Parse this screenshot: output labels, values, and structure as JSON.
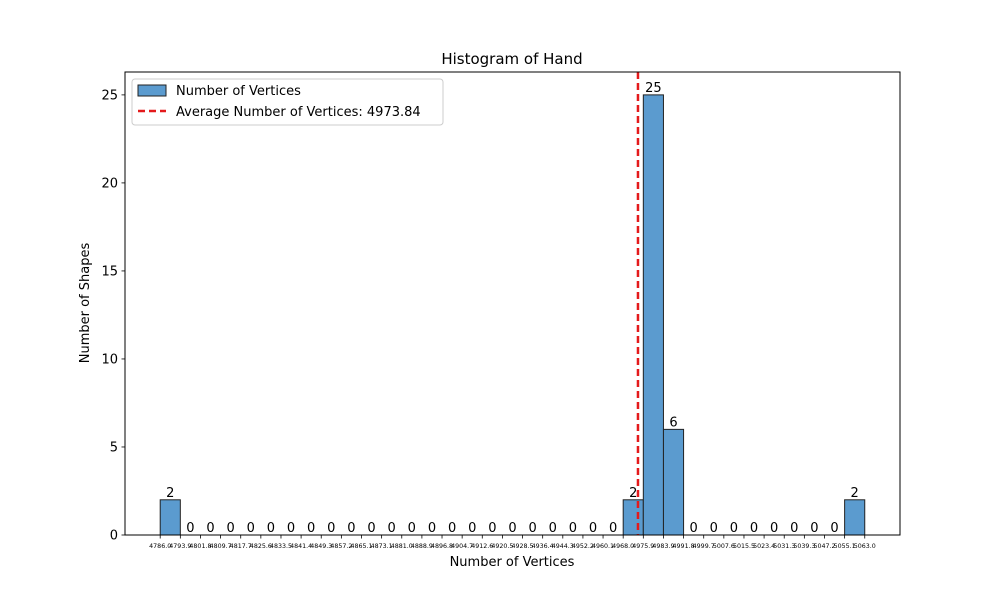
{
  "chart_data": {
    "type": "bar",
    "title": "Histogram of Hand",
    "xlabel": "Number of Vertices",
    "ylabel": "Number of Shapes",
    "ylim": [
      0,
      26.3
    ],
    "y_ticks": [
      0,
      5,
      10,
      15,
      20,
      25
    ],
    "grid": false,
    "legend_position": "top-left",
    "bins": [
      {
        "label": "4786.0",
        "count": 2
      },
      {
        "label": "4793.9",
        "count": 0
      },
      {
        "label": "4801.8",
        "count": 0
      },
      {
        "label": "4809.7",
        "count": 0
      },
      {
        "label": "4817.7",
        "count": 0
      },
      {
        "label": "4825.6",
        "count": 0
      },
      {
        "label": "4833.5",
        "count": 0
      },
      {
        "label": "4841.4",
        "count": 0
      },
      {
        "label": "4849.3",
        "count": 0
      },
      {
        "label": "4857.2",
        "count": 0
      },
      {
        "label": "4865.1",
        "count": 0
      },
      {
        "label": "4873.1",
        "count": 0
      },
      {
        "label": "4881.0",
        "count": 0
      },
      {
        "label": "4888.9",
        "count": 0
      },
      {
        "label": "4896.8",
        "count": 0
      },
      {
        "label": "4904.7",
        "count": 0
      },
      {
        "label": "4912.6",
        "count": 0
      },
      {
        "label": "4920.5",
        "count": 0
      },
      {
        "label": "4928.5",
        "count": 0
      },
      {
        "label": "4936.4",
        "count": 0
      },
      {
        "label": "4944.3",
        "count": 0
      },
      {
        "label": "4952.2",
        "count": 0
      },
      {
        "label": "4960.1",
        "count": 0
      },
      {
        "label": "4968.0",
        "count": 2
      },
      {
        "label": "4975.9",
        "count": 25
      },
      {
        "label": "4983.9",
        "count": 6
      },
      {
        "label": "4991.8",
        "count": 0
      },
      {
        "label": "4999.7",
        "count": 0
      },
      {
        "label": "5007.6",
        "count": 0
      },
      {
        "label": "5015.5",
        "count": 0
      },
      {
        "label": "5023.4",
        "count": 0
      },
      {
        "label": "5031.3",
        "count": 0
      },
      {
        "label": "5039.3",
        "count": 0
      },
      {
        "label": "5047.2",
        "count": 0
      },
      {
        "label": "5055.1",
        "count": 2
      },
      {
        "label": "5063.0",
        "count": null
      }
    ],
    "average": 4973.84,
    "legend": [
      {
        "label": "Number of Vertices",
        "kind": "bar"
      },
      {
        "label": "Average Number of Vertices: 4973.84",
        "kind": "dashed-line"
      }
    ],
    "colors": {
      "bar_fill": "#5b9bcf",
      "bar_edge": "#222222",
      "average_line": "#e41a1c"
    }
  }
}
